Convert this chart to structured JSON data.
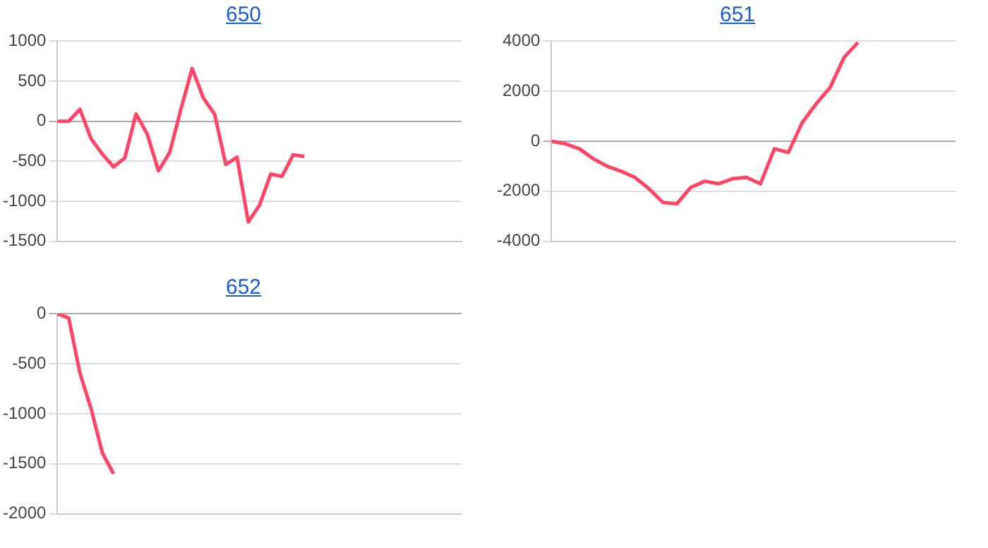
{
  "chart_data": [
    {
      "type": "line",
      "title": "650",
      "categories": [
        null,
        null,
        null,
        null,
        null,
        null,
        null,
        null,
        null,
        null,
        null,
        null,
        null,
        null,
        null,
        null,
        null,
        null,
        null,
        null,
        null,
        null,
        null,
        null,
        null,
        null,
        null,
        null,
        null,
        null,
        null,
        null,
        null,
        null,
        null,
        null,
        null
      ],
      "series": [
        {
          "color": "#ff4466",
          "values": [
            0,
            0,
            150,
            -220,
            -410,
            -570,
            -460,
            90,
            -160,
            -620,
            -390,
            150,
            660,
            290,
            90,
            -540,
            -450,
            -1260,
            -1050,
            -660,
            -690,
            -420,
            -440,
            null,
            null,
            null,
            null,
            null,
            null,
            null,
            null,
            null,
            null,
            null,
            null,
            null,
            null
          ]
        }
      ],
      "ylim": [
        -1500,
        1000
      ],
      "yticks": [
        -1500,
        -1000,
        -500,
        0,
        500,
        1000
      ],
      "grid": "y",
      "tick_labels": "y",
      "marker": "none"
    },
    {
      "type": "line",
      "title": "651",
      "categories": [
        null,
        null,
        null,
        null,
        null,
        null,
        null,
        null,
        null,
        null,
        null,
        null,
        null,
        null,
        null,
        null,
        null,
        null,
        null,
        null,
        null,
        null,
        null,
        null,
        null,
        null,
        null,
        null,
        null,
        null
      ],
      "series": [
        {
          "color": "#ff4466",
          "values": [
            0,
            -100,
            -300,
            -700,
            -1000,
            -1200,
            -1450,
            -1900,
            -2450,
            -2500,
            -1850,
            -1600,
            -1700,
            -1500,
            -1450,
            -1700,
            -300,
            -450,
            750,
            1500,
            2150,
            3350,
            3950,
            null,
            null,
            null,
            null,
            null,
            null,
            null
          ]
        }
      ],
      "ylim": [
        -4000,
        4000
      ],
      "yticks": [
        -4000,
        -2000,
        0,
        2000,
        4000
      ],
      "grid": "y",
      "tick_labels": "y",
      "marker": "none"
    },
    {
      "type": "line",
      "title": "652",
      "categories": [
        null,
        null,
        null,
        null,
        null,
        null,
        null,
        null,
        null,
        null,
        null,
        null,
        null,
        null,
        null,
        null,
        null,
        null,
        null,
        null,
        null,
        null,
        null,
        null,
        null,
        null,
        null,
        null,
        null,
        null,
        null,
        null,
        null,
        null,
        null,
        null,
        null
      ],
      "series": [
        {
          "color": "#ff4466",
          "values": [
            0,
            -40,
            -590,
            -950,
            -1390,
            -1600,
            null,
            null,
            null,
            null,
            null,
            null,
            null,
            null,
            null,
            null,
            null,
            null,
            null,
            null,
            null,
            null,
            null,
            null,
            null,
            null,
            null,
            null,
            null,
            null,
            null,
            null,
            null,
            null,
            null,
            null,
            null
          ]
        }
      ],
      "ylim": [
        -2000,
        0
      ],
      "yticks": [
        -2000,
        -1500,
        -1000,
        -500,
        0
      ],
      "grid": "y",
      "tick_labels": "y",
      "marker": "none"
    }
  ]
}
